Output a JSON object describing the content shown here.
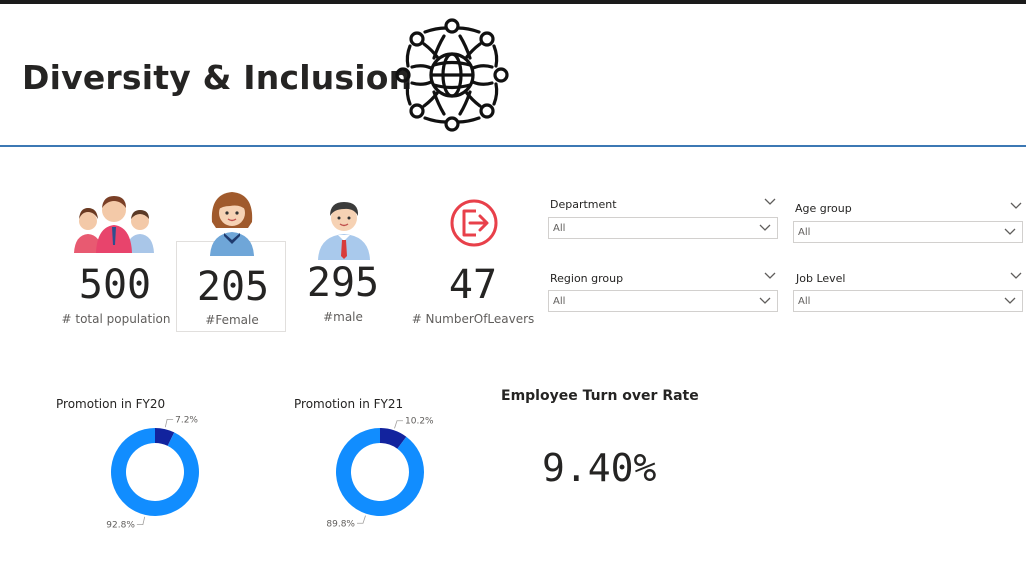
{
  "header": {
    "title": "Diversity & Inclusion",
    "logo_icon": "globe-people-icon"
  },
  "kpis": [
    {
      "value": "500",
      "label": "# total population",
      "icon": "group-people-icon"
    },
    {
      "value": "205",
      "label": "#Female",
      "icon": "female-avatar-icon"
    },
    {
      "value": "295",
      "label": "#male",
      "icon": "male-avatar-icon"
    },
    {
      "value": "47",
      "label": "# NumberOfLeavers",
      "icon": "exit-icon"
    }
  ],
  "filters": [
    {
      "title": "Department",
      "value": "All"
    },
    {
      "title": "Age group",
      "value": "All"
    },
    {
      "title": "Region group",
      "value": "All"
    },
    {
      "title": "Job Level",
      "value": "All"
    }
  ],
  "promotions": [
    {
      "title": "Promotion in FY20",
      "small_label": "7.2%",
      "large_label": "92.8%"
    },
    {
      "title": "Promotion in FY21",
      "small_label": "10.2%",
      "large_label": "89.8%"
    }
  ],
  "turnover": {
    "title": "Employee Turn over Rate",
    "value": "9.40%"
  },
  "chart_data": [
    {
      "type": "pie",
      "title": "Promotion in FY20",
      "slices": [
        {
          "value": 7.2,
          "label": "7.2%",
          "color": "#12239e"
        },
        {
          "value": 92.8,
          "label": "92.8%",
          "color": "#118dff"
        }
      ]
    },
    {
      "type": "pie",
      "title": "Promotion in FY21",
      "slices": [
        {
          "value": 10.2,
          "label": "10.2%",
          "color": "#12239e"
        },
        {
          "value": 89.8,
          "label": "89.8%",
          "color": "#118dff"
        }
      ]
    }
  ],
  "colors": {
    "accent_blue": "#118dff",
    "dark_blue": "#12239e",
    "header_rule": "#3c78b4",
    "exit_red": "#e8404a"
  }
}
